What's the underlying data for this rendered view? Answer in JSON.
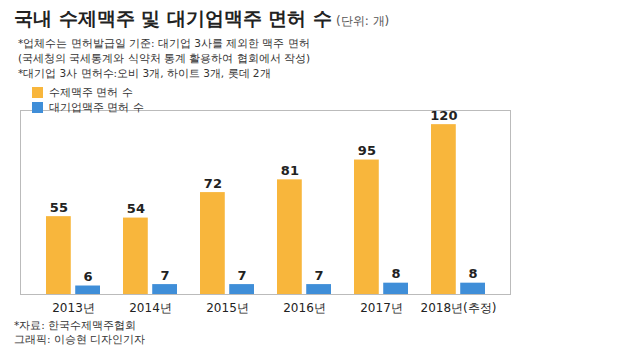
{
  "chart_data": {
    "type": "bar",
    "title": "국내 수제맥주 및 대기업맥주 면허 수",
    "subtitle": "(단위: 개)",
    "annotations": [
      "*업체수는 면허발급일 기준: 대기업 3사를 제외한 맥주 면허",
      "(국세청의 국세통계와 식약처 통계 활용하여 협회에서 작성)",
      "*대기업 3사 면허수:오비 3개, 하이트 3개, 롯데 2개"
    ],
    "source": "*자료: 한국수제맥주협회",
    "credit": "그래픽: 이승현 디자인기자",
    "categories": [
      "2013년",
      "2014년",
      "2015년",
      "2016년",
      "2017년",
      "2018년(추정)"
    ],
    "series": [
      {
        "name": "수제맥주 면허 수",
        "color": "#f8b63c",
        "values": [
          55,
          54,
          72,
          81,
          95,
          120
        ]
      },
      {
        "name": "대기업맥주 면허 수",
        "color": "#3f8ed8",
        "values": [
          6,
          7,
          7,
          7,
          8,
          8
        ]
      }
    ],
    "ylim": [
      0,
      130
    ],
    "data_labels": true,
    "tick_labels": "x",
    "legend": "top-left"
  }
}
